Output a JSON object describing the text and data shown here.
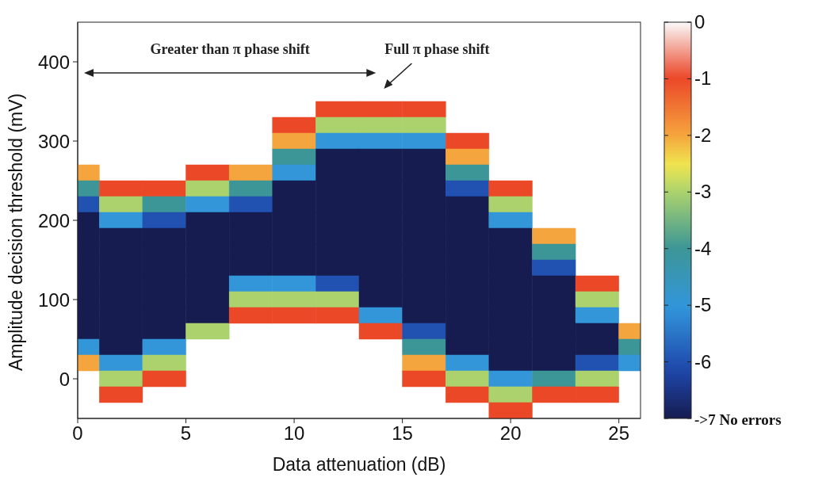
{
  "chart_data": {
    "type": "heatmap",
    "xlabel": "Data attenuation (dB)",
    "ylabel": "Amplitude decision threshold (mV)",
    "x": [
      0,
      2,
      4,
      6,
      8,
      10,
      12,
      14,
      16,
      18,
      20,
      22,
      24,
      26
    ],
    "y": [
      340,
      320,
      300,
      280,
      260,
      240,
      220,
      200,
      180,
      160,
      140,
      120,
      100,
      80,
      60,
      40,
      20,
      0,
      -20,
      -40
    ],
    "cells": [
      [
        null,
        null,
        null,
        null,
        null,
        null,
        -1,
        -1,
        -1,
        null,
        null,
        null,
        null,
        null
      ],
      [
        null,
        null,
        null,
        null,
        null,
        -1,
        -3,
        -3,
        -3,
        null,
        null,
        null,
        null,
        null
      ],
      [
        null,
        null,
        null,
        null,
        null,
        -2,
        -5,
        -5,
        -5,
        -1,
        null,
        null,
        null,
        null
      ],
      [
        null,
        null,
        null,
        null,
        null,
        -4,
        -7,
        -7,
        -7,
        -2,
        null,
        null,
        null,
        null
      ],
      [
        -2,
        null,
        null,
        -1,
        -2,
        -5,
        -7,
        -7,
        -7,
        -4,
        null,
        null,
        null,
        null
      ],
      [
        -4,
        -1,
        -1,
        -3,
        -4,
        -7,
        -7,
        -7,
        -7,
        -6,
        -1,
        null,
        null,
        null
      ],
      [
        -6,
        -3,
        -4,
        -5,
        -6,
        -7,
        -7,
        -7,
        -7,
        -7,
        -3,
        null,
        null,
        null
      ],
      [
        -7,
        -5,
        -6,
        -7,
        -7,
        -7,
        -7,
        -7,
        -7,
        -7,
        -5,
        null,
        null,
        null
      ],
      [
        -7,
        -7,
        -7,
        -7,
        -7,
        -7,
        -7,
        -7,
        -7,
        -7,
        -7,
        -2,
        null,
        null
      ],
      [
        -7,
        -7,
        -7,
        -7,
        -7,
        -7,
        -7,
        -7,
        -7,
        -7,
        -7,
        -4,
        null,
        null
      ],
      [
        -7,
        -7,
        -7,
        -7,
        -7,
        -7,
        -7,
        -7,
        -7,
        -7,
        -7,
        -6,
        null,
        null
      ],
      [
        -7,
        -7,
        -7,
        -7,
        -5,
        -5,
        -6,
        -7,
        -7,
        -7,
        -7,
        -7,
        -1,
        null
      ],
      [
        -7,
        -7,
        -7,
        -7,
        -3,
        -3,
        -3,
        -7,
        -7,
        -7,
        -7,
        -7,
        -3,
        null
      ],
      [
        -7,
        -7,
        -7,
        -7,
        -1,
        -1,
        -1,
        -5,
        -7,
        -7,
        -7,
        -7,
        -5,
        null
      ],
      [
        -7,
        -7,
        -7,
        -3,
        null,
        null,
        null,
        -1,
        -6,
        -7,
        -7,
        -7,
        -7,
        -2
      ],
      [
        -5,
        -7,
        -5,
        null,
        null,
        null,
        null,
        null,
        -4,
        -7,
        -7,
        -7,
        -7,
        -4
      ],
      [
        -2,
        -5,
        -3,
        null,
        null,
        null,
        null,
        null,
        -2,
        -5,
        -7,
        -7,
        -6,
        -5
      ],
      [
        null,
        -3,
        -1,
        null,
        null,
        null,
        null,
        null,
        -1,
        -3,
        -5,
        -4,
        -3,
        null
      ],
      [
        null,
        -1,
        null,
        null,
        null,
        null,
        null,
        null,
        null,
        -1,
        -3,
        -1,
        -1,
        null
      ],
      [
        null,
        null,
        null,
        null,
        null,
        null,
        null,
        null,
        null,
        null,
        -1,
        null,
        null,
        null
      ]
    ],
    "xlim": [
      0,
      26
    ],
    "xticks": [
      0,
      5,
      10,
      15,
      20,
      25
    ],
    "ylim": [
      -50,
      450
    ],
    "yticks": [
      0,
      100,
      200,
      300,
      400
    ],
    "clim": [
      -7,
      0
    ],
    "cticks": [
      {
        "value": -7,
        "label": "->7 No errors"
      },
      -6,
      -5,
      -4,
      -3,
      -2,
      -1,
      0
    ],
    "annotations": [
      "Greater than π phase shift",
      "Full π phase shift"
    ]
  }
}
